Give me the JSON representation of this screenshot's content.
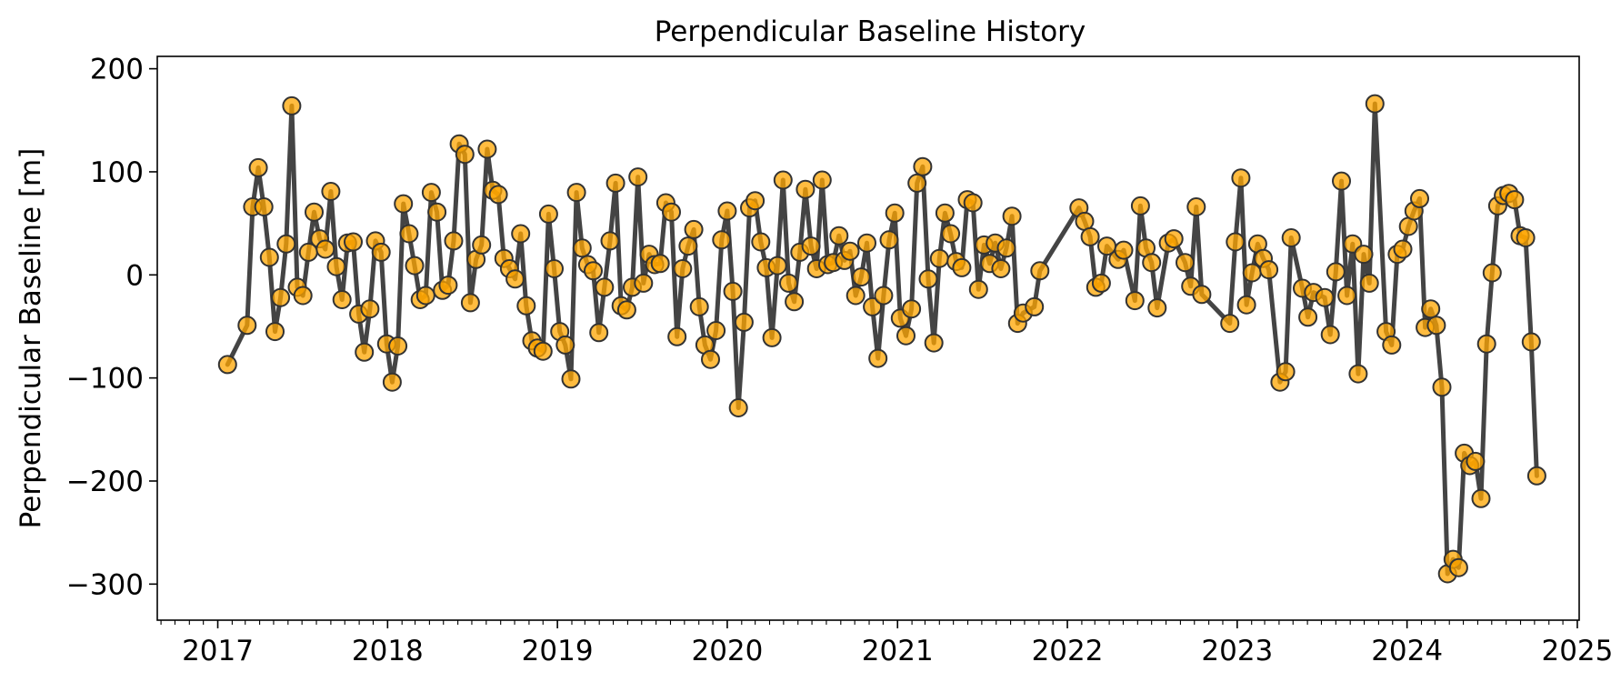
{
  "chart_data": {
    "type": "line",
    "title": "Perpendicular Baseline History",
    "xlabel": "",
    "ylabel": "Perpendicular Baseline [m]",
    "xlim": [
      "2016-08-24",
      "2025-01-05"
    ],
    "ylim": [
      -335,
      212
    ],
    "x_ticks": [
      "2017",
      "2018",
      "2019",
      "2020",
      "2021",
      "2022",
      "2023",
      "2024",
      "2025"
    ],
    "y_ticks": [
      200,
      100,
      0,
      -100,
      -200,
      -300
    ],
    "y_tick_labels": [
      "200",
      "100",
      "0",
      "−100",
      "−200",
      "−300"
    ],
    "grid": false,
    "colors": {
      "line": "#444444",
      "marker_fill": "#ffa500",
      "marker_edge": "#333333"
    },
    "series": [
      {
        "name": "",
        "points": [
          [
            "2017-01-22",
            -87
          ],
          [
            "2017-03-05",
            -49
          ],
          [
            "2017-03-17",
            66
          ],
          [
            "2017-03-29",
            104
          ],
          [
            "2017-04-10",
            66
          ],
          [
            "2017-04-22",
            17
          ],
          [
            "2017-05-04",
            -55
          ],
          [
            "2017-05-16",
            -22
          ],
          [
            "2017-05-28",
            30
          ],
          [
            "2017-06-09",
            164
          ],
          [
            "2017-06-21",
            -12
          ],
          [
            "2017-07-03",
            -20
          ],
          [
            "2017-07-15",
            22
          ],
          [
            "2017-07-27",
            61
          ],
          [
            "2017-08-08",
            35
          ],
          [
            "2017-08-20",
            25
          ],
          [
            "2017-09-01",
            81
          ],
          [
            "2017-09-13",
            8
          ],
          [
            "2017-09-25",
            -24
          ],
          [
            "2017-10-07",
            31
          ],
          [
            "2017-10-19",
            32
          ],
          [
            "2017-10-31",
            -38
          ],
          [
            "2017-11-12",
            -75
          ],
          [
            "2017-11-24",
            -33
          ],
          [
            "2017-12-06",
            33
          ],
          [
            "2017-12-18",
            22
          ],
          [
            "2017-12-30",
            -67
          ],
          [
            "2018-01-11",
            -104
          ],
          [
            "2018-01-23",
            -69
          ],
          [
            "2018-02-04",
            69
          ],
          [
            "2018-02-16",
            40
          ],
          [
            "2018-02-28",
            9
          ],
          [
            "2018-03-12",
            -24
          ],
          [
            "2018-03-24",
            -20
          ],
          [
            "2018-04-05",
            80
          ],
          [
            "2018-04-17",
            61
          ],
          [
            "2018-04-29",
            -15
          ],
          [
            "2018-05-11",
            -10
          ],
          [
            "2018-05-23",
            33
          ],
          [
            "2018-06-04",
            127
          ],
          [
            "2018-06-16",
            117
          ],
          [
            "2018-06-28",
            -27
          ],
          [
            "2018-07-10",
            15
          ],
          [
            "2018-07-22",
            29
          ],
          [
            "2018-08-03",
            122
          ],
          [
            "2018-08-15",
            82
          ],
          [
            "2018-08-27",
            78
          ],
          [
            "2018-09-08",
            16
          ],
          [
            "2018-09-20",
            6
          ],
          [
            "2018-10-02",
            -4
          ],
          [
            "2018-10-14",
            40
          ],
          [
            "2018-10-26",
            -30
          ],
          [
            "2018-11-07",
            -64
          ],
          [
            "2018-11-19",
            -71
          ],
          [
            "2018-12-01",
            -74
          ],
          [
            "2018-12-13",
            59
          ],
          [
            "2018-12-25",
            6
          ],
          [
            "2019-01-06",
            -55
          ],
          [
            "2019-01-18",
            -68
          ],
          [
            "2019-01-30",
            -101
          ],
          [
            "2019-02-11",
            80
          ],
          [
            "2019-02-23",
            26
          ],
          [
            "2019-03-07",
            10
          ],
          [
            "2019-03-19",
            4
          ],
          [
            "2019-03-31",
            -56
          ],
          [
            "2019-04-12",
            -12
          ],
          [
            "2019-04-24",
            33
          ],
          [
            "2019-05-06",
            89
          ],
          [
            "2019-05-18",
            -30
          ],
          [
            "2019-05-30",
            -34
          ],
          [
            "2019-06-11",
            -12
          ],
          [
            "2019-06-23",
            95
          ],
          [
            "2019-07-05",
            -8
          ],
          [
            "2019-07-17",
            20
          ],
          [
            "2019-07-29",
            10
          ],
          [
            "2019-08-10",
            11
          ],
          [
            "2019-08-22",
            70
          ],
          [
            "2019-09-03",
            61
          ],
          [
            "2019-09-15",
            -60
          ],
          [
            "2019-09-27",
            6
          ],
          [
            "2019-10-09",
            28
          ],
          [
            "2019-10-21",
            44
          ],
          [
            "2019-11-02",
            -31
          ],
          [
            "2019-11-14",
            -68
          ],
          [
            "2019-11-26",
            -82
          ],
          [
            "2019-12-08",
            -54
          ],
          [
            "2019-12-20",
            34
          ],
          [
            "2020-01-01",
            62
          ],
          [
            "2020-01-13",
            -16
          ],
          [
            "2020-01-25",
            -129
          ],
          [
            "2020-02-06",
            -46
          ],
          [
            "2020-02-18",
            65
          ],
          [
            "2020-03-01",
            72
          ],
          [
            "2020-03-13",
            32
          ],
          [
            "2020-03-25",
            7
          ],
          [
            "2020-04-06",
            -61
          ],
          [
            "2020-04-18",
            9
          ],
          [
            "2020-04-30",
            92
          ],
          [
            "2020-05-12",
            -8
          ],
          [
            "2020-05-24",
            -26
          ],
          [
            "2020-06-05",
            22
          ],
          [
            "2020-06-17",
            83
          ],
          [
            "2020-06-29",
            28
          ],
          [
            "2020-07-11",
            6
          ],
          [
            "2020-07-23",
            92
          ],
          [
            "2020-08-04",
            10
          ],
          [
            "2020-08-16",
            12
          ],
          [
            "2020-08-28",
            38
          ],
          [
            "2020-09-09",
            14
          ],
          [
            "2020-09-21",
            23
          ],
          [
            "2020-10-03",
            -20
          ],
          [
            "2020-10-15",
            -2
          ],
          [
            "2020-10-27",
            31
          ],
          [
            "2020-11-08",
            -31
          ],
          [
            "2020-11-20",
            -81
          ],
          [
            "2020-12-02",
            -20
          ],
          [
            "2020-12-14",
            34
          ],
          [
            "2020-12-26",
            60
          ],
          [
            "2021-01-07",
            -42
          ],
          [
            "2021-01-19",
            -59
          ],
          [
            "2021-01-31",
            -33
          ],
          [
            "2021-02-12",
            89
          ],
          [
            "2021-02-24",
            105
          ],
          [
            "2021-03-08",
            -4
          ],
          [
            "2021-03-20",
            -66
          ],
          [
            "2021-04-01",
            16
          ],
          [
            "2021-04-13",
            60
          ],
          [
            "2021-04-25",
            40
          ],
          [
            "2021-05-07",
            13
          ],
          [
            "2021-05-19",
            7
          ],
          [
            "2021-05-31",
            73
          ],
          [
            "2021-06-12",
            70
          ],
          [
            "2021-06-24",
            -14
          ],
          [
            "2021-07-06",
            29
          ],
          [
            "2021-07-18",
            11
          ],
          [
            "2021-07-30",
            31
          ],
          [
            "2021-08-11",
            6
          ],
          [
            "2021-08-23",
            26
          ],
          [
            "2021-09-04",
            57
          ],
          [
            "2021-09-16",
            -47
          ],
          [
            "2021-09-28",
            -37
          ],
          [
            "2021-10-22",
            -31
          ],
          [
            "2021-11-03",
            4
          ],
          [
            "2022-01-26",
            65
          ],
          [
            "2022-02-07",
            52
          ],
          [
            "2022-02-19",
            37
          ],
          [
            "2022-03-03",
            -12
          ],
          [
            "2022-03-15",
            -8
          ],
          [
            "2022-03-27",
            28
          ],
          [
            "2022-04-20",
            15
          ],
          [
            "2022-05-02",
            24
          ],
          [
            "2022-05-26",
            -25
          ],
          [
            "2022-06-07",
            67
          ],
          [
            "2022-06-19",
            26
          ],
          [
            "2022-07-01",
            12
          ],
          [
            "2022-07-13",
            -32
          ],
          [
            "2022-08-06",
            31
          ],
          [
            "2022-08-18",
            35
          ],
          [
            "2022-09-11",
            12
          ],
          [
            "2022-09-23",
            -11
          ],
          [
            "2022-10-05",
            66
          ],
          [
            "2022-10-17",
            -19
          ],
          [
            "2022-12-16",
            -47
          ],
          [
            "2022-12-28",
            32
          ],
          [
            "2023-01-09",
            94
          ],
          [
            "2023-01-21",
            -29
          ],
          [
            "2023-02-02",
            2
          ],
          [
            "2023-02-14",
            30
          ],
          [
            "2023-02-26",
            16
          ],
          [
            "2023-03-10",
            5
          ],
          [
            "2023-04-03",
            -104
          ],
          [
            "2023-04-15",
            -94
          ],
          [
            "2023-04-27",
            36
          ],
          [
            "2023-05-21",
            -13
          ],
          [
            "2023-06-02",
            -41
          ],
          [
            "2023-06-14",
            -17
          ],
          [
            "2023-07-08",
            -22
          ],
          [
            "2023-07-20",
            -58
          ],
          [
            "2023-08-01",
            3
          ],
          [
            "2023-08-13",
            91
          ],
          [
            "2023-08-25",
            -20
          ],
          [
            "2023-09-06",
            30
          ],
          [
            "2023-09-18",
            -96
          ],
          [
            "2023-09-30",
            20
          ],
          [
            "2023-10-12",
            -8
          ],
          [
            "2023-10-24",
            166
          ],
          [
            "2023-11-17",
            -55
          ],
          [
            "2023-11-29",
            -68
          ],
          [
            "2023-12-11",
            20
          ],
          [
            "2023-12-23",
            25
          ],
          [
            "2024-01-04",
            47
          ],
          [
            "2024-01-16",
            62
          ],
          [
            "2024-01-28",
            74
          ],
          [
            "2024-02-09",
            -51
          ],
          [
            "2024-02-21",
            -33
          ],
          [
            "2024-03-04",
            -49
          ],
          [
            "2024-03-16",
            -109
          ],
          [
            "2024-03-28",
            -290
          ],
          [
            "2024-04-09",
            -276
          ],
          [
            "2024-04-21",
            -284
          ],
          [
            "2024-05-03",
            -173
          ],
          [
            "2024-05-15",
            -185
          ],
          [
            "2024-05-27",
            -181
          ],
          [
            "2024-06-08",
            -217
          ],
          [
            "2024-06-20",
            -67
          ],
          [
            "2024-07-02",
            2
          ],
          [
            "2024-07-14",
            67
          ],
          [
            "2024-07-26",
            77
          ],
          [
            "2024-08-07",
            79
          ],
          [
            "2024-08-19",
            73
          ],
          [
            "2024-08-31",
            38
          ],
          [
            "2024-09-12",
            36
          ],
          [
            "2024-09-24",
            -65
          ],
          [
            "2024-10-06",
            -195
          ]
        ]
      }
    ]
  }
}
